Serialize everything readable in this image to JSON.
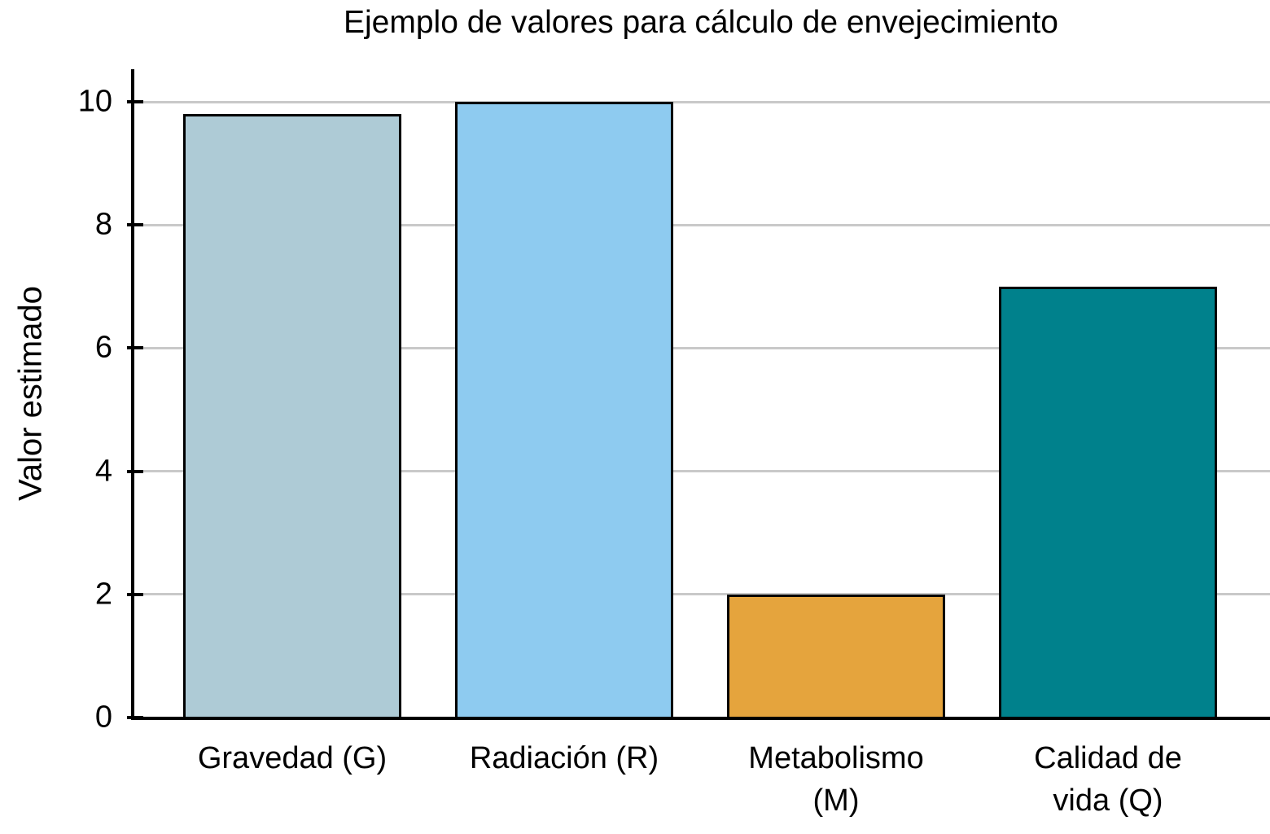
{
  "chart_data": {
    "type": "bar",
    "title": "Ejemplo de valores para cálculo de envejecimiento",
    "xlabel": "",
    "ylabel": "Valor estimado",
    "categories": [
      "Gravedad (G)",
      "Radiación (R)",
      "Metabolismo (M)",
      "Calidad de vida (Q)"
    ],
    "category_lines": [
      [
        "Gravedad (G)"
      ],
      [
        "Radiación (R)"
      ],
      [
        "Metabolismo",
        "(M)"
      ],
      [
        "Calidad de",
        "vida (Q)"
      ]
    ],
    "values": [
      9.8,
      10,
      2,
      7
    ],
    "bar_colors": [
      "#aecbd6",
      "#8ecbf0",
      "#e5a43d",
      "#00818c"
    ],
    "bar_edge_color": "#000000",
    "yticks": [
      0,
      2,
      4,
      6,
      8,
      10
    ],
    "ylim": [
      0,
      10.5
    ],
    "grid": true,
    "gridline_color": "#c9c9c9",
    "axis_color": "#000000",
    "background_color": "#ffffff",
    "legend_position": "none"
  }
}
